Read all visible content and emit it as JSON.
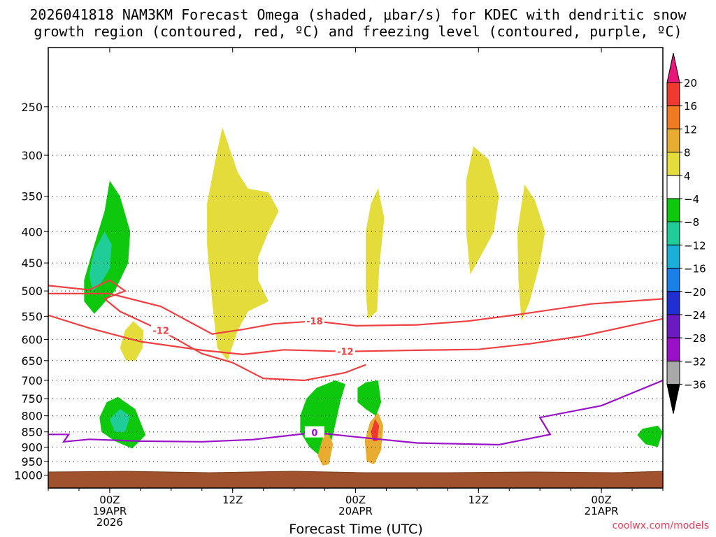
{
  "chart_data": {
    "type": "heatmap",
    "title_line1": "2026041818 NAM3KM Forecast Omega (shaded, μbar/s) for KDEC with dendritic snow",
    "title_line2": "growth region (contoured, red, ºC) and freezing level (contoured, purple, ºC)",
    "xlabel": "Forecast Time (UTC)",
    "credit": "coolwx.com/models",
    "pressure_ticks": [
      250,
      300,
      350,
      400,
      450,
      500,
      550,
      600,
      650,
      700,
      750,
      800,
      850,
      900,
      950,
      1000
    ],
    "pressure_labels": [
      "250",
      "300",
      "350",
      "400",
      "450",
      "500",
      "550",
      "600",
      "650",
      "700",
      "750",
      "800",
      "850",
      "900",
      "950",
      "1000"
    ],
    "time_ticks": [
      {
        "hour": 6,
        "l1": "00Z",
        "l2": "19APR",
        "l3": "2026"
      },
      {
        "hour": 18,
        "l1": "12Z",
        "l2": "",
        "l3": ""
      },
      {
        "hour": 30,
        "l1": "00Z",
        "l2": "20APR",
        "l3": ""
      },
      {
        "hour": 42,
        "l1": "12Z",
        "l2": "",
        "l3": ""
      },
      {
        "hour": 54,
        "l1": "00Z",
        "l2": "21APR",
        "l3": ""
      }
    ],
    "colorbar": {
      "levels": [
        20,
        16,
        12,
        8,
        4,
        -4,
        -8,
        -12,
        -16,
        -20,
        -24,
        -28,
        -32,
        -36
      ],
      "labels": [
        "20",
        "16",
        "12",
        "8",
        "4",
        "−4",
        "−8",
        "−12",
        "−16",
        "−20",
        "−24",
        "−28",
        "−32",
        "−36"
      ],
      "colors": [
        "#e8187a",
        "#ee3a30",
        "#ef7a22",
        "#e7ac30",
        "#e4dc3a",
        "#ffffff",
        "#0ec80e",
        "#20cc98",
        "#1aaed8",
        "#1a80e8",
        "#2030d0",
        "#6a1ac0",
        "#9a10c8",
        "#a8a8a8",
        "#000000"
      ]
    },
    "contours_red": [
      {
        "value": -18,
        "label": "-18",
        "points": [
          [
            0,
            505
          ],
          [
            6,
            505
          ],
          [
            11,
            530
          ],
          [
            16,
            588
          ],
          [
            19,
            578
          ],
          [
            22,
            566
          ],
          [
            26,
            560
          ],
          [
            30,
            570
          ],
          [
            36,
            568
          ],
          [
            41,
            560
          ],
          [
            46,
            546
          ],
          [
            53,
            525
          ],
          [
            60,
            515
          ]
        ]
      },
      {
        "value": -12,
        "label": "-12",
        "points": [
          [
            0,
            548
          ],
          [
            4,
            575
          ],
          [
            9,
            605
          ],
          [
            15,
            625
          ],
          [
            19,
            635
          ],
          [
            23,
            624
          ],
          [
            29,
            628
          ],
          [
            36,
            625
          ],
          [
            42,
            623
          ],
          [
            47,
            610
          ],
          [
            52,
            593
          ],
          [
            60,
            555
          ]
        ]
      },
      {
        "value": -12,
        "label": "-12",
        "points": [
          [
            0,
            490
          ],
          [
            4,
            498
          ],
          [
            6,
            480
          ],
          [
            7.5,
            500
          ],
          [
            5.5,
            515
          ],
          [
            7,
            540
          ],
          [
            11,
            580
          ],
          [
            15,
            633
          ],
          [
            18,
            655
          ],
          [
            21,
            695
          ],
          [
            25,
            700
          ],
          [
            29,
            680
          ],
          [
            31,
            660
          ]
        ]
      }
    ],
    "contours_purple": [
      {
        "value": 0,
        "label": "0",
        "points": [
          [
            0,
            858
          ],
          [
            2,
            858
          ],
          [
            1.5,
            882
          ],
          [
            4,
            874
          ],
          [
            9,
            880
          ],
          [
            15,
            882
          ],
          [
            20,
            875
          ],
          [
            26,
            852
          ],
          [
            30,
            866
          ],
          [
            36,
            886
          ],
          [
            44,
            892
          ],
          [
            49,
            858
          ],
          [
            48,
            805
          ],
          [
            54,
            770
          ],
          [
            60,
            700
          ]
        ]
      }
    ],
    "shaded_regions": [
      {
        "omega": -8,
        "points": [
          [
            3.5,
            480
          ],
          [
            4.5,
            420
          ],
          [
            5.5,
            370
          ],
          [
            6,
            330
          ],
          [
            7,
            350
          ],
          [
            8,
            400
          ],
          [
            7.8,
            450
          ],
          [
            6.5,
            500
          ],
          [
            4.5,
            545
          ],
          [
            3.5,
            520
          ]
        ]
      },
      {
        "omega": -12,
        "points": [
          [
            4,
            470
          ],
          [
            4.5,
            430
          ],
          [
            5.5,
            400
          ],
          [
            6.2,
            420
          ],
          [
            6,
            460
          ],
          [
            5,
            490
          ],
          [
            4.3,
            500
          ]
        ]
      },
      {
        "omega": 4,
        "points": [
          [
            7,
            620
          ],
          [
            7.5,
            580
          ],
          [
            8.3,
            560
          ],
          [
            9.3,
            580
          ],
          [
            9.2,
            620
          ],
          [
            8.5,
            650
          ],
          [
            7.6,
            650
          ]
        ]
      },
      {
        "omega": 4,
        "points": [
          [
            15.5,
            360
          ],
          [
            16.5,
            295
          ],
          [
            17,
            270
          ],
          [
            18.5,
            320
          ],
          [
            19.5,
            340
          ],
          [
            21.5,
            345
          ],
          [
            22.5,
            370
          ],
          [
            21.5,
            400
          ],
          [
            20.5,
            440
          ],
          [
            20.5,
            480
          ],
          [
            21.5,
            520
          ],
          [
            19.5,
            540
          ],
          [
            18.5,
            580
          ],
          [
            17.5,
            650
          ],
          [
            16.5,
            620
          ],
          [
            16,
            520
          ],
          [
            15.5,
            420
          ]
        ]
      },
      {
        "omega": 4,
        "points": [
          [
            31,
            400
          ],
          [
            31.5,
            360
          ],
          [
            32.2,
            340
          ],
          [
            32.8,
            380
          ],
          [
            32.3,
            460
          ],
          [
            32.1,
            540
          ],
          [
            31.2,
            555
          ],
          [
            31,
            500
          ]
        ]
      },
      {
        "omega": 4,
        "points": [
          [
            40.8,
            330
          ],
          [
            41.5,
            290
          ],
          [
            43,
            305
          ],
          [
            44,
            350
          ],
          [
            43.5,
            400
          ],
          [
            42.5,
            430
          ],
          [
            41.2,
            470
          ],
          [
            40.8,
            400
          ]
        ]
      },
      {
        "omega": 4,
        "points": [
          [
            45.8,
            400
          ],
          [
            46.5,
            335
          ],
          [
            47.5,
            355
          ],
          [
            48.5,
            400
          ],
          [
            48,
            450
          ],
          [
            47,
            520
          ],
          [
            46.2,
            560
          ],
          [
            45.9,
            480
          ]
        ]
      },
      {
        "omega": -8,
        "points": [
          [
            5,
            805
          ],
          [
            5.7,
            760
          ],
          [
            6.8,
            745
          ],
          [
            8.5,
            780
          ],
          [
            9.5,
            860
          ],
          [
            8.2,
            905
          ],
          [
            6.5,
            880
          ],
          [
            5.2,
            850
          ]
        ]
      },
      {
        "omega": -12,
        "points": [
          [
            6,
            810
          ],
          [
            7,
            780
          ],
          [
            8,
            800
          ],
          [
            7.5,
            850
          ],
          [
            6.5,
            850
          ]
        ]
      },
      {
        "omega": -8,
        "points": [
          [
            24.6,
            800
          ],
          [
            25.2,
            750
          ],
          [
            26.2,
            720
          ],
          [
            28,
            700
          ],
          [
            29,
            710
          ],
          [
            28.5,
            760
          ],
          [
            28,
            830
          ],
          [
            27.5,
            900
          ],
          [
            26.5,
            930
          ],
          [
            25.5,
            900
          ],
          [
            24.6,
            850
          ]
        ]
      },
      {
        "omega": -8,
        "points": [
          [
            30.2,
            720
          ],
          [
            31,
            705
          ],
          [
            32.2,
            700
          ],
          [
            32.5,
            760
          ],
          [
            32,
            800
          ],
          [
            31,
            780
          ],
          [
            30.2,
            760
          ]
        ]
      },
      {
        "omega": 8,
        "points": [
          [
            26.3,
            930
          ],
          [
            26.8,
            870
          ],
          [
            27.3,
            850
          ],
          [
            27.8,
            890
          ],
          [
            27.4,
            960
          ],
          [
            26.8,
            965
          ]
        ]
      },
      {
        "omega": 8,
        "points": [
          [
            30.9,
            880
          ],
          [
            31.4,
            820
          ],
          [
            32.2,
            790
          ],
          [
            32.7,
            830
          ],
          [
            32.5,
            910
          ],
          [
            31.8,
            960
          ],
          [
            31.1,
            950
          ]
        ]
      },
      {
        "omega": 16,
        "points": [
          [
            31.5,
            850
          ],
          [
            31.9,
            810
          ],
          [
            32.3,
            830
          ],
          [
            32.1,
            880
          ],
          [
            31.7,
            880
          ]
        ]
      },
      {
        "omega": -8,
        "points": [
          [
            57.5,
            860
          ],
          [
            58,
            840
          ],
          [
            59.5,
            830
          ],
          [
            60,
            850
          ],
          [
            59.5,
            900
          ],
          [
            58.3,
            890
          ]
        ]
      }
    ]
  }
}
